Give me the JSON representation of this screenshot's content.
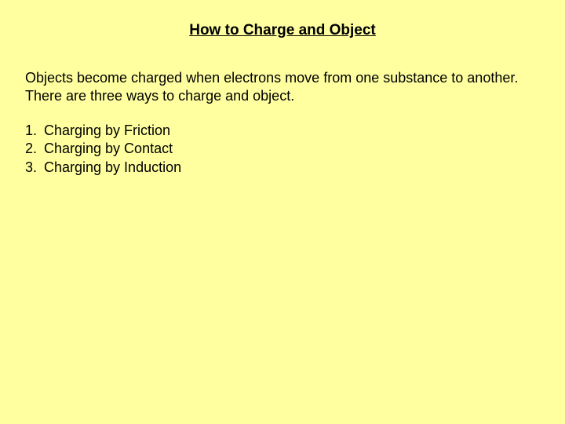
{
  "title": "How to Charge and Object",
  "intro": "Objects become charged when electrons move from one substance to another. There are three ways to charge and object.",
  "list": {
    "items": [
      {
        "num": "1.",
        "text": "Charging by Friction"
      },
      {
        "num": "2.",
        "text": "Charging by Contact"
      },
      {
        "num": "3.",
        "text": "Charging by Induction"
      }
    ]
  },
  "colors": {
    "background": "#ffffa0",
    "text": "#000000"
  },
  "typography": {
    "font_family": "Comic Sans MS",
    "title_fontsize": 19,
    "body_fontsize": 18,
    "title_weight": "bold",
    "title_underline": true
  }
}
